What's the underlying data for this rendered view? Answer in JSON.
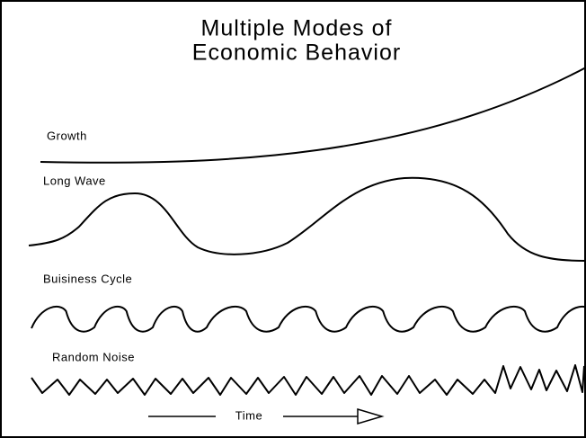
{
  "title": [
    "Multiple Modes of",
    "Economic Behavior"
  ],
  "modes": [
    "Growth",
    "Long Wave",
    "Buisiness Cycle",
    "Random Noise"
  ],
  "axis_label": "Time"
}
